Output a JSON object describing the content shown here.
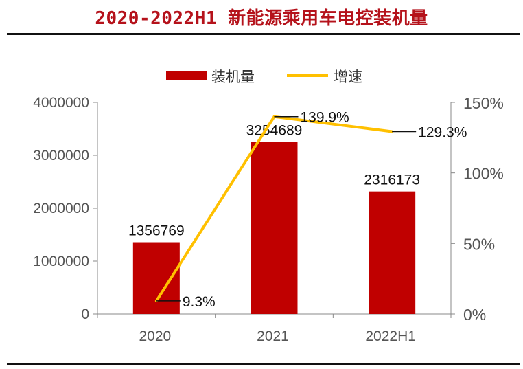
{
  "title": "2020-2022H1 新能源乘用车电控装机量",
  "colors": {
    "bar": "#c00000",
    "line": "#ffc000",
    "title": "#b5121b"
  },
  "chart_data": {
    "type": "bar",
    "title": "2020-2022H1 新能源乘用车电控装机量",
    "categories": [
      "2020",
      "2021",
      "2022H1"
    ],
    "series": [
      {
        "name": "装机量",
        "type": "bar",
        "axis": "left",
        "values": [
          1356769,
          3254689,
          2316173
        ],
        "labels": [
          "1356769",
          "3254689",
          "2316173"
        ]
      },
      {
        "name": "增速",
        "type": "line",
        "axis": "right",
        "values": [
          9.3,
          139.9,
          129.3
        ],
        "labels": [
          "9.3%",
          "139.9%",
          "129.3%"
        ]
      }
    ],
    "y_left": {
      "min": 0,
      "max": 4000000,
      "ticks": [
        "0",
        "1000000",
        "2000000",
        "3000000",
        "4000000"
      ]
    },
    "y_right": {
      "min": 0,
      "max": 150,
      "ticks": [
        "0%",
        "50%",
        "100%",
        "150%"
      ]
    },
    "legend": {
      "position": "top-center",
      "entries": [
        "装机量",
        "增速"
      ]
    },
    "grid": false
  }
}
